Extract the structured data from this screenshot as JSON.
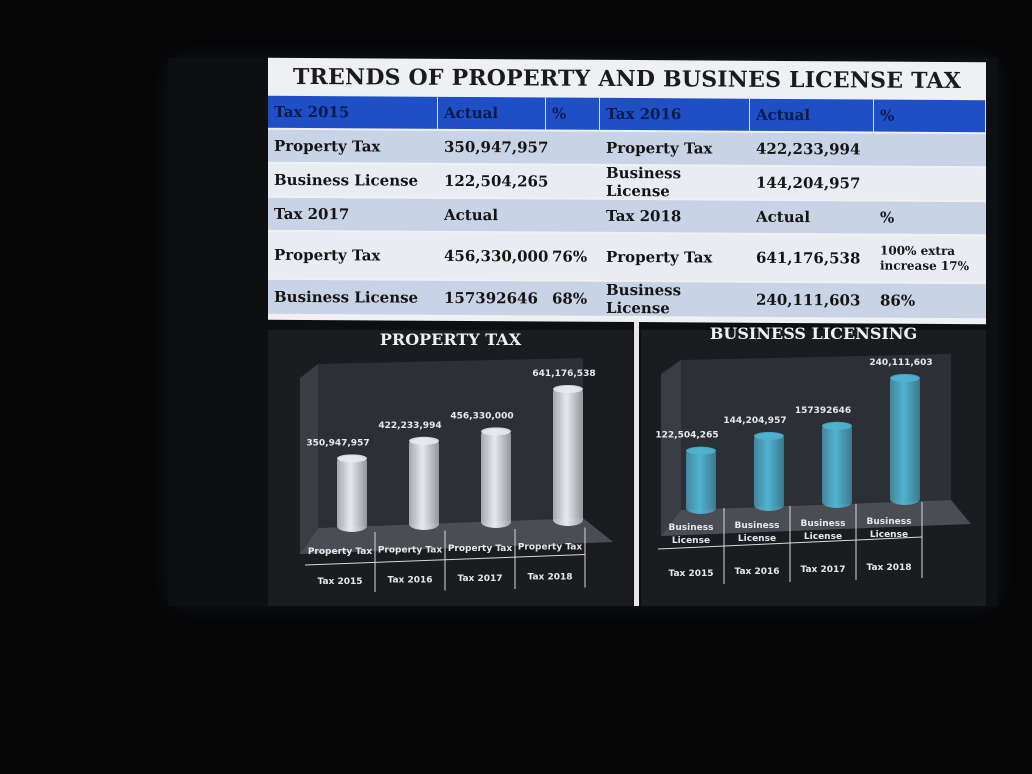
{
  "table": {
    "title": "TRENDS OF PROPERTY AND BUSINES LICENSE TAX",
    "header": [
      "Tax 2015",
      "Actual",
      "%",
      "Tax 2016",
      "Actual",
      "%"
    ],
    "rows": [
      [
        "Property Tax",
        "350,947,957",
        "",
        "Property Tax",
        "422,233,994",
        ""
      ],
      [
        "Business License",
        "122,504,265",
        "",
        "Business License",
        "144,204,957",
        ""
      ],
      [
        "Tax 2017",
        "Actual",
        "",
        "Tax 2018",
        "Actual",
        "%"
      ],
      [
        "Property Tax",
        "456,330,000",
        "76%",
        "Property Tax",
        "641,176,538",
        "100% extra increase 17%"
      ],
      [
        "Business License",
        "157392646",
        "68%",
        "Business License",
        "240,111,603",
        "86%"
      ]
    ]
  },
  "chart_data": [
    {
      "type": "bar",
      "title": "PROPERTY TAX",
      "categories": [
        "Tax 2015",
        "Tax 2016",
        "Tax 2017",
        "Tax 2018"
      ],
      "category_top_label": "Property Tax",
      "series": [
        {
          "values": [
            350947957,
            422233994,
            456330000,
            641176538
          ]
        }
      ],
      "data_labels": [
        "350,947,957",
        "422,233,994",
        "456,330,000",
        "641,176,538"
      ],
      "bar_color": "#e7e9ee",
      "grid": false
    },
    {
      "type": "bar",
      "title": "BUSINESS LICENSING",
      "categories": [
        "Tax 2015",
        "Tax 2016",
        "Tax 2017",
        "Tax 2018"
      ],
      "category_top_label": "Business License",
      "series": [
        {
          "values": [
            122504265,
            144204957,
            157392646,
            240111603
          ]
        }
      ],
      "data_labels": [
        "122,504,265",
        "144,204,957",
        "157392646",
        "240,111,603"
      ],
      "bar_color": "#4fb3d0",
      "grid": false
    }
  ]
}
